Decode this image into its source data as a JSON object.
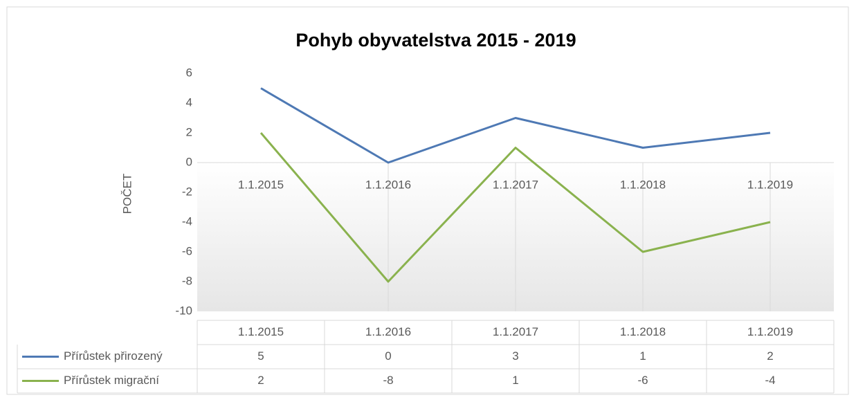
{
  "chart_data": {
    "type": "line",
    "title": "Pohyb obyvatelstva 2015 - 2019",
    "y_label": "POČET",
    "categories": [
      "1.1.2015",
      "1.1.2016",
      "1.1.2017",
      "1.1.2018",
      "1.1.2019"
    ],
    "series": [
      {
        "name": "Přírůstek přirozený",
        "color": "#4e79b4",
        "values": [
          5,
          0,
          3,
          1,
          2
        ]
      },
      {
        "name": "Přírůstek migrační",
        "color": "#8ab24e",
        "values": [
          2,
          -8,
          1,
          -6,
          -4
        ]
      }
    ],
    "ylim": [
      -10,
      6
    ],
    "yticks": [
      -10,
      -8,
      -6,
      -4,
      -2,
      0,
      2,
      4,
      6
    ],
    "data_table": true
  }
}
